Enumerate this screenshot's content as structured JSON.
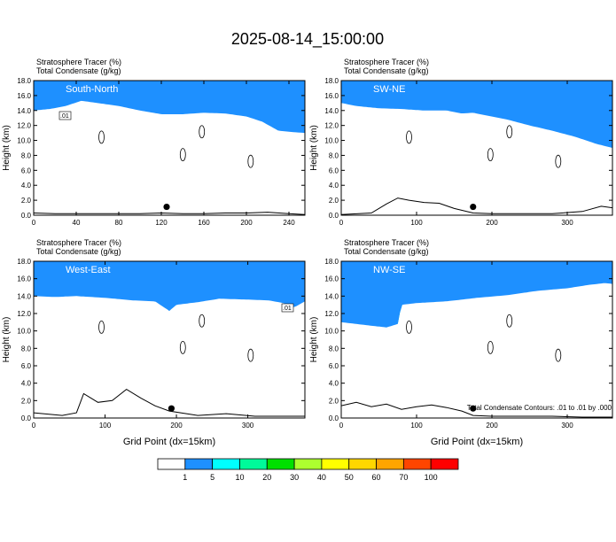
{
  "title": "2025-08-14_15:00:00",
  "colorbar": {
    "colors": [
      "#ffffff",
      "#1e90ff",
      "#00ffff",
      "#00fa9a",
      "#00e000",
      "#adff2f",
      "#ffff00",
      "#ffd700",
      "#ffa500",
      "#ff4500",
      "#ff0000"
    ],
    "labels": [
      "1",
      "5",
      "10",
      "20",
      "30",
      "40",
      "50",
      "60",
      "70",
      "100"
    ]
  },
  "footnote": "Total Condensate Contours: .01 to .01 by .000",
  "chart_data": [
    {
      "type": "heatmap",
      "panel": "South-North",
      "title_lines": [
        "Stratosphere Tracer    (%)",
        "Total Condensate    (g/kg)"
      ],
      "xlabel": "",
      "ylabel": "Height (km)",
      "xlim": [
        0,
        255
      ],
      "ylim": [
        0,
        18
      ],
      "xticks": [
        "0",
        "40",
        "80",
        "120",
        "160",
        "200",
        "240"
      ],
      "yticks": [
        "0.0",
        "2.0",
        "4.0",
        "6.0",
        "8.0",
        "10.0",
        "12.0",
        "14.0",
        "16.0",
        "18.0"
      ],
      "tracer_base_x": [
        0,
        15,
        30,
        45,
        60,
        80,
        100,
        120,
        140,
        160,
        180,
        200,
        215,
        230,
        245,
        255
      ],
      "tracer_base_km": [
        14.0,
        14.2,
        14.6,
        15.3,
        15.0,
        14.6,
        14.0,
        13.5,
        13.5,
        13.7,
        13.6,
        13.2,
        12.5,
        11.3,
        11.1,
        11.0
      ],
      "terrain_x": [
        0,
        20,
        40,
        60,
        80,
        100,
        120,
        140,
        160,
        180,
        200,
        220,
        240,
        255
      ],
      "terrain_km": [
        0.3,
        0.2,
        0.2,
        0.2,
        0.2,
        0.2,
        0.3,
        0.2,
        0.2,
        0.3,
        0.3,
        0.4,
        0.2,
        0.1
      ],
      "contour_label": ".01",
      "marker_x": 125
    },
    {
      "type": "heatmap",
      "panel": "SW-NE",
      "title_lines": [
        "Stratosphere Tracer    (%)",
        "Total Condensate    (g/kg)"
      ],
      "xlabel": "",
      "ylabel": "Height (km)",
      "xlim": [
        0,
        360
      ],
      "ylim": [
        0,
        18
      ],
      "xticks": [
        "0",
        "100",
        "200",
        "300"
      ],
      "yticks": [
        "0.0",
        "2.0",
        "4.0",
        "6.0",
        "8.0",
        "10.0",
        "12.0",
        "14.0",
        "16.0",
        "18.0"
      ],
      "tracer_base_x": [
        0,
        20,
        50,
        80,
        110,
        140,
        160,
        175,
        190,
        220,
        250,
        280,
        310,
        340,
        360
      ],
      "tracer_base_km": [
        15.0,
        14.6,
        14.3,
        14.2,
        14.0,
        14.0,
        13.6,
        13.7,
        13.4,
        12.8,
        12.0,
        11.3,
        10.5,
        9.5,
        9.0
      ],
      "terrain_x": [
        0,
        40,
        60,
        75,
        90,
        110,
        130,
        150,
        175,
        200,
        240,
        280,
        320,
        345,
        360
      ],
      "terrain_km": [
        0.1,
        0.3,
        1.5,
        2.3,
        2.0,
        1.7,
        1.6,
        0.9,
        0.3,
        0.2,
        0.2,
        0.2,
        0.5,
        1.2,
        1.0
      ],
      "contour_label": "",
      "marker_x": 175
    },
    {
      "type": "heatmap",
      "panel": "West-East",
      "title_lines": [
        "Stratosphere Tracer    (%)",
        "Total Condensate    (g/kg)"
      ],
      "xlabel": "Grid Point (dx=15km)",
      "ylabel": "Height (km)",
      "xlim": [
        0,
        380
      ],
      "ylim": [
        0,
        18
      ],
      "xticks": [
        "0",
        "100",
        "200",
        "300"
      ],
      "yticks": [
        "0.0",
        "2.0",
        "4.0",
        "6.0",
        "8.0",
        "10.0",
        "12.0",
        "14.0",
        "16.0",
        "18.0"
      ],
      "tracer_base_x": [
        0,
        30,
        60,
        100,
        140,
        170,
        190,
        200,
        230,
        260,
        300,
        330,
        350,
        365,
        380
      ],
      "tracer_base_km": [
        14.0,
        13.9,
        14.0,
        13.8,
        13.5,
        13.4,
        12.3,
        13.0,
        13.3,
        13.7,
        13.6,
        13.5,
        13.2,
        12.7,
        13.4
      ],
      "terrain_x": [
        0,
        40,
        60,
        70,
        90,
        110,
        130,
        150,
        170,
        190,
        230,
        270,
        310,
        340,
        380
      ],
      "terrain_km": [
        0.6,
        0.3,
        0.6,
        2.8,
        1.8,
        2.0,
        3.3,
        2.3,
        1.4,
        0.8,
        0.3,
        0.5,
        0.2,
        0.2,
        0.2
      ],
      "contour_label": ".01",
      "marker_x": 193
    },
    {
      "type": "heatmap",
      "panel": "NW-SE",
      "title_lines": [
        "Stratosphere Tracer    (%)",
        "Total Condensate    (g/kg)"
      ],
      "xlabel": "Grid Point (dx=15km)",
      "ylabel": "Height (km)",
      "xlim": [
        0,
        360
      ],
      "ylim": [
        0,
        18
      ],
      "xticks": [
        "0",
        "100",
        "200",
        "300"
      ],
      "yticks": [
        "0.0",
        "2.0",
        "4.0",
        "6.0",
        "8.0",
        "10.0",
        "12.0",
        "14.0",
        "16.0",
        "18.0"
      ],
      "tracer_base_x": [
        0,
        20,
        40,
        60,
        75,
        80,
        100,
        140,
        180,
        220,
        260,
        300,
        330,
        350,
        360
      ],
      "tracer_base_km": [
        11.0,
        10.8,
        10.6,
        10.4,
        10.8,
        13.0,
        13.2,
        13.4,
        13.8,
        14.1,
        14.6,
        14.9,
        15.3,
        15.5,
        15.4
      ],
      "terrain_x": [
        0,
        20,
        40,
        60,
        80,
        100,
        120,
        140,
        160,
        175,
        200,
        240,
        280,
        320,
        360
      ],
      "terrain_km": [
        1.4,
        1.8,
        1.3,
        1.6,
        1.0,
        1.3,
        1.5,
        1.2,
        0.8,
        0.3,
        0.2,
        0.2,
        0.2,
        0.1,
        0.1
      ],
      "contour_label": "",
      "marker_x": 175
    }
  ]
}
